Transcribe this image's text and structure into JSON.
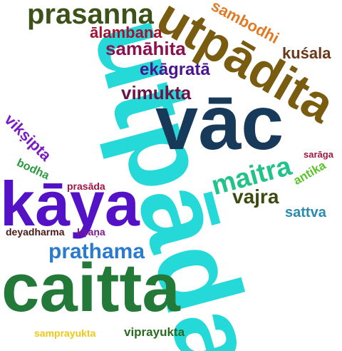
{
  "words": [
    {
      "text": "utpāda",
      "color": "#26d9d9",
      "rotate": 75
    },
    {
      "text": "utpādita",
      "color": "#7a5c10",
      "rotate": 30
    },
    {
      "text": "vāc",
      "color": "#173a5a",
      "rotate": 0
    },
    {
      "text": "caitta",
      "color": "#237a38",
      "rotate": 0
    },
    {
      "text": "kāya",
      "color": "#5412c6",
      "rotate": 0
    },
    {
      "text": "prasanna",
      "color": "#3c5218",
      "rotate": 0
    },
    {
      "text": "maitra",
      "color": "#22c28a",
      "rotate": -15
    },
    {
      "text": "prathama",
      "color": "#2a7bcf",
      "rotate": 0
    },
    {
      "text": "vajra",
      "color": "#3c4a10",
      "rotate": 0
    },
    {
      "text": "vimukta",
      "color": "#6a1448",
      "rotate": 0
    },
    {
      "text": "samāhita",
      "color": "#8a1050",
      "rotate": 0
    },
    {
      "text": "ekāgratā",
      "color": "#4a1690",
      "rotate": 0
    },
    {
      "text": "ālambana",
      "color": "#a01432",
      "rotate": 0
    },
    {
      "text": "sambodhi",
      "color": "#e07a24",
      "rotate": 28
    },
    {
      "text": "kuśala",
      "color": "#6a3818",
      "rotate": 0
    },
    {
      "text": "vikṣipta",
      "color": "#7a1cc6",
      "rotate": 45
    },
    {
      "text": "bodha",
      "color": "#2a9a40",
      "rotate": 25
    },
    {
      "text": "prasāda",
      "color": "#a01446",
      "rotate": 0
    },
    {
      "text": "sattva",
      "color": "#2a8ab0",
      "rotate": 0
    },
    {
      "text": "antika",
      "color": "#5ac42a",
      "rotate": -30
    },
    {
      "text": "sarāga",
      "color": "#a01840",
      "rotate": 0
    },
    {
      "text": "deyadharma",
      "color": "#4a1818",
      "rotate": 0
    },
    {
      "text": "kṣaṇa",
      "color": "#7a1a8a",
      "rotate": 0
    },
    {
      "text": "samprayukta",
      "color": "#f0c814",
      "rotate": 0
    },
    {
      "text": "viprayukta",
      "color": "#2a6a20",
      "rotate": 0
    }
  ]
}
